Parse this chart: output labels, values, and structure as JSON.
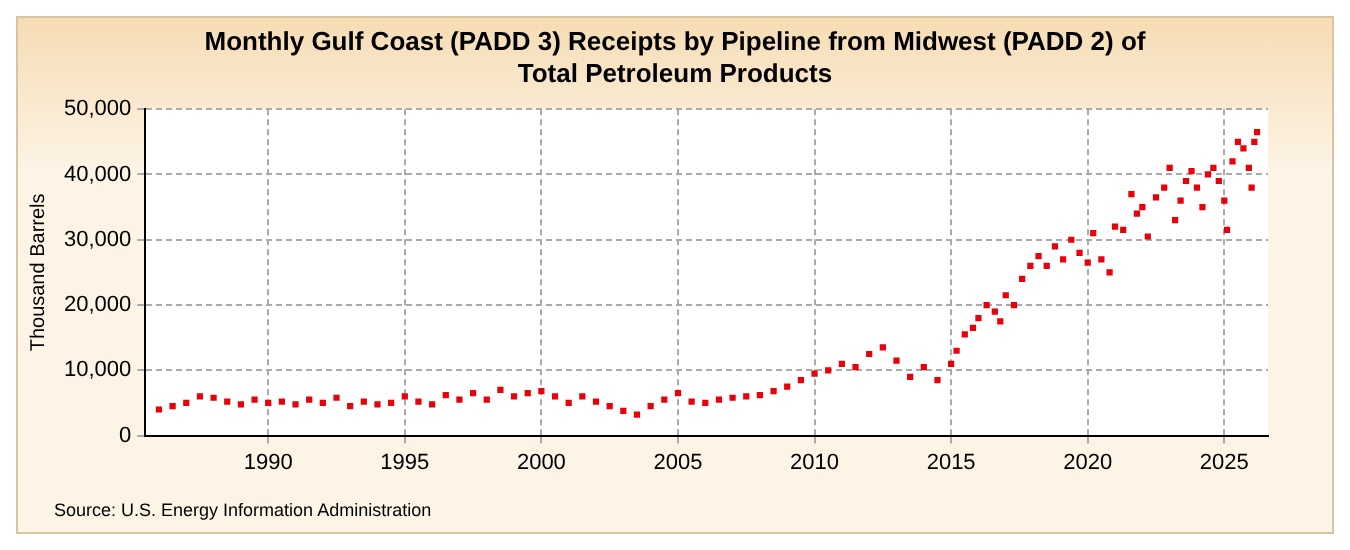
{
  "chart_data": {
    "type": "scatter",
    "title": "Monthly Gulf Coast (PADD 3) Receipts by Pipeline from Midwest (PADD 2) of Total Petroleum Products",
    "ylabel": "Thousand Barrels",
    "annotations": [
      "Source: U.S. Energy Information Administration"
    ],
    "series": [
      {
        "color": "#e8000b",
        "x": [
          1986.0,
          1986.5,
          1987.0,
          1987.5,
          1988.0,
          1988.5,
          1989.0,
          1989.5,
          1990.0,
          1990.5,
          1991.0,
          1991.5,
          1992.0,
          1992.5,
          1993.0,
          1993.5,
          1994.0,
          1994.5,
          1995.0,
          1995.5,
          1996.0,
          1996.5,
          1997.0,
          1997.5,
          1998.0,
          1998.5,
          1999.0,
          1999.5,
          2000.0,
          2000.5,
          2001.0,
          2001.5,
          2002.0,
          2002.5,
          2003.0,
          2003.5,
          2004.0,
          2004.5,
          2005.0,
          2005.5,
          2006.0,
          2006.5,
          2007.0,
          2007.5,
          2008.0,
          2008.5,
          2009.0,
          2009.5,
          2010.0,
          2010.5,
          2011.0,
          2011.5,
          2012.0,
          2012.5,
          2013.0,
          2013.5,
          2014.0,
          2014.5,
          2015.0,
          2015.2,
          2015.5,
          2015.8,
          2016.0,
          2016.3,
          2016.6,
          2016.8,
          2017.0,
          2017.3,
          2017.6,
          2017.9,
          2018.2,
          2018.5,
          2018.8,
          2019.1,
          2019.4,
          2019.7,
          2020.0,
          2020.2,
          2020.5,
          2020.8,
          2021.0,
          2021.3,
          2021.6,
          2021.8,
          2022.0,
          2022.2,
          2022.5,
          2022.8,
          2023.0,
          2023.2,
          2023.4,
          2023.6,
          2023.8,
          2024.0,
          2024.2,
          2024.4,
          2024.6,
          2024.8,
          2025.0,
          2025.1,
          2025.3,
          2025.5,
          2025.7,
          2025.9,
          2026.0,
          2026.1,
          2026.2
        ],
        "values": [
          4000,
          4500,
          5000,
          6000,
          5800,
          5200,
          4800,
          5500,
          5000,
          5200,
          4800,
          5500,
          5000,
          5800,
          4500,
          5200,
          4800,
          5000,
          6000,
          5200,
          4800,
          6200,
          5500,
          6500,
          5500,
          7000,
          6000,
          6500,
          6800,
          6000,
          5000,
          6000,
          5200,
          4500,
          3800,
          3200,
          4500,
          5500,
          6500,
          5200,
          5000,
          5500,
          5800,
          6000,
          6200,
          6800,
          7500,
          8500,
          9500,
          10000,
          11000,
          10500,
          12500,
          13500,
          11500,
          9000,
          10500,
          8500,
          11000,
          13000,
          15500,
          16500,
          18000,
          20000,
          19000,
          17500,
          21500,
          20000,
          24000,
          26000,
          27500,
          26000,
          29000,
          27000,
          30000,
          28000,
          26500,
          31000,
          27000,
          25000,
          32000,
          31500,
          37000,
          34000,
          35000,
          30500,
          36500,
          38000,
          41000,
          33000,
          36000,
          39000,
          40500,
          38000,
          35000,
          40000,
          41000,
          39000,
          36000,
          31500,
          42000,
          45000,
          44000,
          41000,
          38000,
          45000,
          46500
        ]
      }
    ],
    "xlim": [
      1985.5,
      2026.6
    ],
    "xticks": [
      1990,
      1995,
      2000,
      2005,
      2010,
      2015,
      2020,
      2025
    ],
    "ylim": [
      0,
      50000
    ],
    "yticks": [
      0,
      {
        "value": 10000,
        "label": "10,000"
      },
      {
        "value": 20000,
        "label": "20,000"
      },
      {
        "value": 30000,
        "label": "30,000"
      },
      {
        "value": 40000,
        "label": "40,000"
      },
      {
        "value": 50000,
        "label": "50,000"
      }
    ],
    "grid": true,
    "marker": "square"
  }
}
